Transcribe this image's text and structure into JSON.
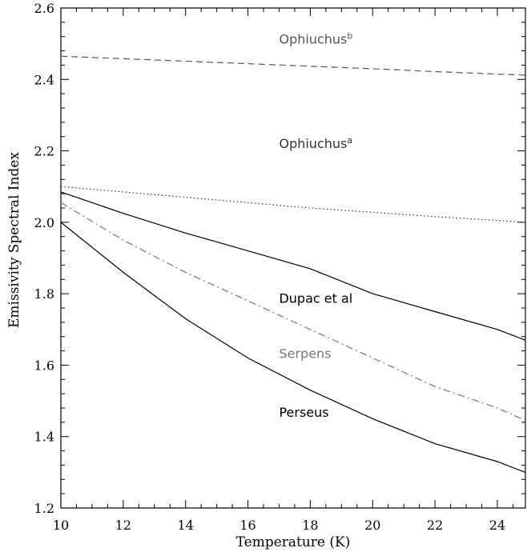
{
  "chart_data": {
    "type": "line",
    "title": "",
    "xlabel": "Temperature (K)",
    "ylabel": "Emissivity Spectral Index",
    "xlim": [
      10,
      24.9
    ],
    "ylim": [
      1.2,
      2.6
    ],
    "x_ticks": [
      "10",
      "12",
      "14",
      "16",
      "18",
      "20",
      "22",
      "24"
    ],
    "y_ticks": [
      "1.2",
      "1.4",
      "1.6",
      "1.8",
      "2.0",
      "2.2",
      "2.4",
      "2.6"
    ],
    "grid": false,
    "series": [
      {
        "name": "Ophiuchus",
        "superscript": "b",
        "style": "dashed",
        "color": "#555555",
        "x": [
          10,
          12,
          14,
          16,
          18,
          20,
          22,
          24,
          24.9
        ],
        "y": [
          2.465,
          2.458,
          2.451,
          2.444,
          2.437,
          2.43,
          2.422,
          2.415,
          2.412
        ]
      },
      {
        "name": "Ophiuchus",
        "superscript": "a",
        "style": "dotted",
        "color": "#333333",
        "x": [
          10,
          12,
          14,
          16,
          18,
          20,
          22,
          24,
          24.9
        ],
        "y": [
          2.1,
          2.085,
          2.07,
          2.055,
          2.04,
          2.028,
          2.016,
          2.005,
          2.0
        ]
      },
      {
        "name": "Dupac et al",
        "superscript": "",
        "style": "solid",
        "color": "#000000",
        "x": [
          10,
          12,
          14,
          16,
          18,
          20,
          22,
          24,
          24.9
        ],
        "y": [
          2.085,
          2.025,
          1.97,
          1.92,
          1.87,
          1.8,
          1.75,
          1.7,
          1.67
        ]
      },
      {
        "name": "Serpens",
        "superscript": "",
        "style": "dashdot",
        "color": "#777777",
        "x": [
          10,
          12,
          14,
          16,
          18,
          20,
          22,
          24,
          24.9
        ],
        "y": [
          2.055,
          1.95,
          1.86,
          1.78,
          1.7,
          1.62,
          1.54,
          1.48,
          1.445
        ]
      },
      {
        "name": "Perseus",
        "superscript": "",
        "style": "solid",
        "color": "#000000",
        "x": [
          10,
          12,
          14,
          16,
          18,
          20,
          22,
          24,
          24.9
        ],
        "y": [
          2.0,
          1.86,
          1.73,
          1.62,
          1.53,
          1.45,
          1.38,
          1.33,
          1.3
        ]
      }
    ]
  }
}
